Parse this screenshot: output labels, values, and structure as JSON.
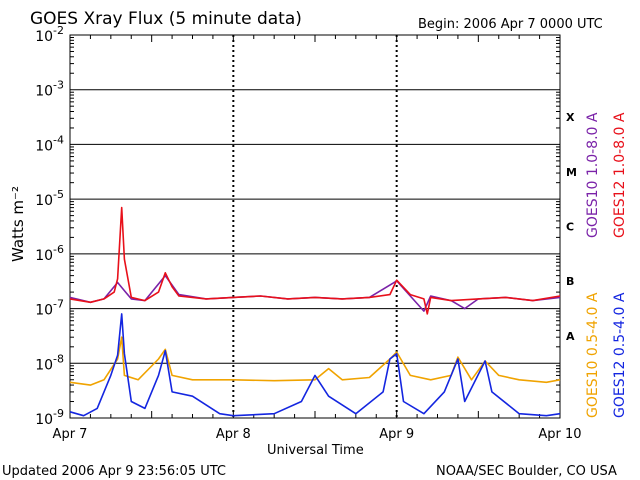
{
  "title": "GOES Xray Flux (5 minute data)",
  "begin": "Begin:  2006 Apr 7 0000 UTC",
  "updated": "Updated 2006 Apr  9 23:56:05 UTC",
  "credit": "NOAA/SEC Boulder, CO USA",
  "colors": {
    "goes10_long": "#7a22a8",
    "goes12_long": "#e8101a",
    "goes10_short": "#f0a300",
    "goes12_short": "#1426e0"
  },
  "chart_data": {
    "type": "line",
    "title": "GOES Xray Flux (5 minute data)",
    "xlabel": "Universal Time",
    "ylabel": "Watts m⁻²",
    "y_scale": "log",
    "ylim": [
      1e-09,
      0.01
    ],
    "xlim_hours": [
      0,
      72
    ],
    "x_ticks": [
      {
        "hour": 0,
        "label": "Apr 7"
      },
      {
        "hour": 24,
        "label": "Apr 8"
      },
      {
        "hour": 48,
        "label": "Apr 9"
      },
      {
        "hour": 72,
        "label": "Apr 10"
      }
    ],
    "y_ticks": [
      {
        "base": "10",
        "exp": "-9"
      },
      {
        "base": "10",
        "exp": "-8"
      },
      {
        "base": "10",
        "exp": "-7"
      },
      {
        "base": "10",
        "exp": "-6"
      },
      {
        "base": "10",
        "exp": "-5"
      },
      {
        "base": "10",
        "exp": "-4"
      },
      {
        "base": "10",
        "exp": "-3"
      },
      {
        "base": "10",
        "exp": "-2"
      }
    ],
    "flare_classes": [
      "A",
      "B",
      "C",
      "M",
      "X"
    ],
    "legend": [
      "GOES10 1.0-8.0 A",
      "GOES12 1.0-8.0 A",
      "GOES10 0.5-4.0 A",
      "GOES12 0.5-4.0 A"
    ],
    "series": [
      {
        "name": "GOES10 1.0-8.0 A",
        "key": "goes10_long",
        "points": [
          [
            0,
            1.6e-07
          ],
          [
            3,
            1.3e-07
          ],
          [
            5,
            1.5e-07
          ],
          [
            7,
            3e-07
          ],
          [
            9,
            1.5e-07
          ],
          [
            11,
            1.4e-07
          ],
          [
            14,
            4e-07
          ],
          [
            16,
            1.8e-07
          ],
          [
            20,
            1.5e-07
          ],
          [
            24,
            1.6e-07
          ],
          [
            28,
            1.7e-07
          ],
          [
            32,
            1.5e-07
          ],
          [
            36,
            1.6e-07
          ],
          [
            40,
            1.5e-07
          ],
          [
            44,
            1.6e-07
          ],
          [
            48,
            3.2e-07
          ],
          [
            50,
            1.7e-07
          ],
          [
            52,
            9e-08
          ],
          [
            53,
            1.7e-07
          ],
          [
            56,
            1.4e-07
          ],
          [
            58,
            1e-07
          ],
          [
            60,
            1.5e-07
          ],
          [
            64,
            1.6e-07
          ],
          [
            68,
            1.4e-07
          ],
          [
            72,
            1.6e-07
          ]
        ]
      },
      {
        "name": "GOES12 1.0-8.0 A",
        "key": "goes12_long",
        "points": [
          [
            0,
            1.5e-07
          ],
          [
            3,
            1.3e-07
          ],
          [
            5,
            1.5e-07
          ],
          [
            6.5,
            2e-07
          ],
          [
            7,
            3.5e-07
          ],
          [
            7.6,
            7e-06
          ],
          [
            8,
            8e-07
          ],
          [
            9,
            1.6e-07
          ],
          [
            11,
            1.4e-07
          ],
          [
            13,
            2e-07
          ],
          [
            14,
            4.5e-07
          ],
          [
            15,
            2.5e-07
          ],
          [
            16,
            1.7e-07
          ],
          [
            20,
            1.5e-07
          ],
          [
            24,
            1.6e-07
          ],
          [
            28,
            1.7e-07
          ],
          [
            32,
            1.5e-07
          ],
          [
            36,
            1.6e-07
          ],
          [
            40,
            1.5e-07
          ],
          [
            44,
            1.6e-07
          ],
          [
            47,
            1.8e-07
          ],
          [
            48,
            3.3e-07
          ],
          [
            50,
            1.8e-07
          ],
          [
            52,
            1.5e-07
          ],
          [
            52.5,
            8e-08
          ],
          [
            53,
            1.6e-07
          ],
          [
            56,
            1.4e-07
          ],
          [
            60,
            1.5e-07
          ],
          [
            64,
            1.6e-07
          ],
          [
            68,
            1.4e-07
          ],
          [
            72,
            1.7e-07
          ]
        ]
      },
      {
        "name": "GOES10 0.5-4.0 A",
        "key": "goes10_short",
        "points": [
          [
            0,
            4.5e-09
          ],
          [
            3,
            4e-09
          ],
          [
            5,
            5e-09
          ],
          [
            7,
            1.2e-08
          ],
          [
            7.6,
            3e-08
          ],
          [
            8,
            6e-09
          ],
          [
            10,
            5e-09
          ],
          [
            13,
            1.2e-08
          ],
          [
            14,
            1.8e-08
          ],
          [
            15,
            6e-09
          ],
          [
            18,
            5e-09
          ],
          [
            24,
            5e-09
          ],
          [
            30,
            4.8e-09
          ],
          [
            36,
            5e-09
          ],
          [
            38,
            8e-09
          ],
          [
            40,
            5e-09
          ],
          [
            44,
            5.5e-09
          ],
          [
            47,
            1.2e-08
          ],
          [
            48,
            1.6e-08
          ],
          [
            50,
            6e-09
          ],
          [
            53,
            5e-09
          ],
          [
            56,
            6e-09
          ],
          [
            57,
            1.3e-08
          ],
          [
            59,
            5e-09
          ],
          [
            61,
            1.1e-08
          ],
          [
            63,
            6e-09
          ],
          [
            66,
            5e-09
          ],
          [
            70,
            4.5e-09
          ],
          [
            72,
            5e-09
          ]
        ]
      },
      {
        "name": "GOES12 0.5-4.0 A",
        "key": "goes12_short",
        "points": [
          [
            0,
            1.3e-09
          ],
          [
            2,
            1.1e-09
          ],
          [
            4,
            1.5e-09
          ],
          [
            6,
            6e-09
          ],
          [
            7,
            1.4e-08
          ],
          [
            7.6,
            8e-08
          ],
          [
            8,
            1.5e-08
          ],
          [
            9,
            2e-09
          ],
          [
            11,
            1.5e-09
          ],
          [
            13,
            6e-09
          ],
          [
            14,
            1.7e-08
          ],
          [
            15,
            3e-09
          ],
          [
            18,
            2.5e-09
          ],
          [
            22,
            1.2e-09
          ],
          [
            24,
            1.1e-09
          ],
          [
            30,
            1.2e-09
          ],
          [
            34,
            2e-09
          ],
          [
            36,
            6e-09
          ],
          [
            38,
            2.5e-09
          ],
          [
            42,
            1.2e-09
          ],
          [
            46,
            3e-09
          ],
          [
            47,
            1.2e-08
          ],
          [
            48,
            1.5e-08
          ],
          [
            49,
            2e-09
          ],
          [
            52,
            1.2e-09
          ],
          [
            55,
            3e-09
          ],
          [
            57,
            1.2e-08
          ],
          [
            58,
            2e-09
          ],
          [
            61,
            1.1e-08
          ],
          [
            62,
            3e-09
          ],
          [
            66,
            1.2e-09
          ],
          [
            70,
            1.1e-09
          ],
          [
            72,
            1.2e-09
          ]
        ]
      }
    ]
  }
}
